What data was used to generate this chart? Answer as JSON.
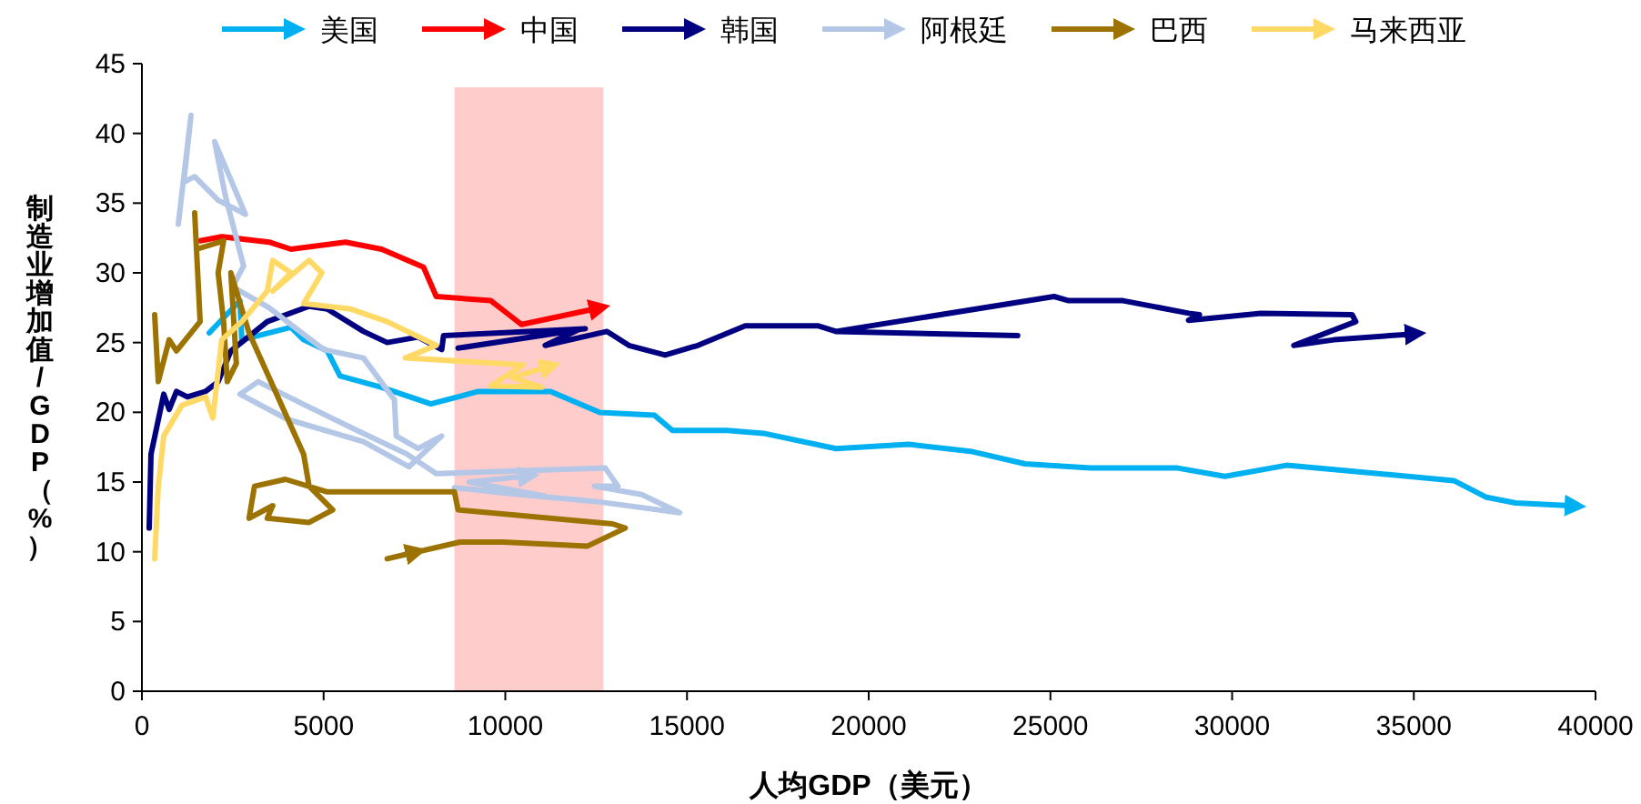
{
  "chart_data": {
    "type": "line",
    "xlabel": "人均GDP（美元）",
    "ylabel": "制造业增加值/GDP（%）",
    "xlim": [
      0,
      40000
    ],
    "ylim": [
      0,
      45
    ],
    "xticks": [
      0,
      5000,
      10000,
      15000,
      20000,
      25000,
      30000,
      35000,
      40000
    ],
    "yticks": [
      0,
      5,
      10,
      15,
      20,
      25,
      30,
      35,
      40,
      45
    ],
    "grid": false,
    "legend": "top",
    "line_style": "solid",
    "bands": [
      {
        "axis": "x",
        "from": 8600,
        "to": 12700,
        "color": "#ffcccc"
      }
    ],
    "series": [
      {
        "name": "美国",
        "color": "#00b0f0",
        "x": [
          1850,
          2700,
          2750,
          4100,
          4450,
          5100,
          5450,
          6600,
          7950,
          9250,
          11250,
          12600,
          14100,
          14600,
          16100,
          17100,
          19100,
          21100,
          22800,
          24300,
          26100,
          28500,
          29800,
          31500,
          32800,
          36100,
          37000,
          37800,
          39300
        ],
        "values": [
          25.7,
          28,
          25.2,
          26.1,
          25.2,
          24.4,
          22.6,
          21.8,
          20.6,
          21.5,
          21.5,
          20,
          19.8,
          18.7,
          18.7,
          18.5,
          17.4,
          17.7,
          17.2,
          16.3,
          16,
          16,
          15.4,
          16.2,
          15.9,
          15.1,
          13.9,
          13.5,
          13.3
        ]
      },
      {
        "name": "中国",
        "color": "#ff0000",
        "x": [
          1600,
          2200,
          3500,
          4100,
          5600,
          6600,
          7750,
          8100,
          9600,
          10100,
          10450,
          12450
        ],
        "values": [
          32.3,
          32.6,
          32.2,
          31.7,
          32.2,
          31.7,
          30.4,
          28.3,
          28,
          27,
          26.3,
          27.4
        ]
      },
      {
        "name": "韩国",
        "color": "#000080",
        "x": [
          200,
          250,
          600,
          750,
          950,
          1250,
          1750,
          2100,
          2450,
          3450,
          4600,
          5100,
          6100,
          6750,
          7600,
          8250,
          8300,
          12200,
          8700,
          12000,
          11100,
          12800,
          13400,
          14400,
          15300,
          16600,
          18600,
          19100,
          24100,
          19100,
          25100,
          25500,
          27000,
          28800,
          29100,
          28800,
          30800,
          33300,
          33400,
          31700,
          32800,
          34900
        ],
        "values": [
          11.7,
          17,
          21.3,
          20.2,
          21.5,
          21.1,
          21.5,
          22.2,
          24.4,
          26.5,
          27.6,
          27.4,
          25.8,
          25,
          25.4,
          24.5,
          25.5,
          26,
          24.6,
          25.9,
          24.8,
          25.8,
          24.8,
          24.1,
          24.8,
          26.2,
          26.2,
          25.8,
          25.5,
          25.8,
          28.3,
          28,
          28,
          27.1,
          27,
          26.6,
          27.1,
          27,
          26.5,
          24.8,
          25.2,
          25.6
        ]
      },
      {
        "name": "阿根廷",
        "color": "#b4c7e7",
        "x": [
          1000,
          1350,
          1150,
          1450,
          2100,
          2850,
          2000,
          2300,
          2800,
          2500,
          3500,
          5000,
          6100,
          6950,
          7000,
          7600,
          8250,
          7350,
          6100,
          4000,
          2700,
          3200,
          4500,
          6000,
          7300,
          8100,
          12750,
          13100,
          12450,
          13750,
          14800,
          12500,
          10000,
          8600,
          11100,
          9000,
          10500
        ],
        "values": [
          33.5,
          41.3,
          36.5,
          36.9,
          35.2,
          34.2,
          39.4,
          35.5,
          30.5,
          29,
          27.5,
          24.5,
          23.9,
          20.9,
          18.3,
          17.4,
          18.3,
          16.1,
          17.9,
          19.5,
          21.3,
          22.2,
          20.5,
          18.6,
          17,
          15.6,
          16,
          14.7,
          14.7,
          14.1,
          12.8,
          13.6,
          14.2,
          14.6,
          14,
          15,
          15.4
        ]
      },
      {
        "name": "巴西",
        "color": "#9c7300",
        "x": [
          350,
          450,
          750,
          950,
          1600,
          1450,
          1500,
          2250,
          2100,
          2250,
          2350,
          2600,
          2450,
          2950,
          4450,
          4600,
          5250,
          4600,
          3450,
          3600,
          2950,
          3100,
          3950,
          5100,
          8600,
          8700,
          12950,
          13300,
          12250,
          9950,
          8750,
          6750,
          7400
        ],
        "values": [
          27,
          22.2,
          25.2,
          24.4,
          26.5,
          34.3,
          31.7,
          32.3,
          30,
          26.5,
          22.2,
          23.5,
          30,
          25.7,
          17,
          14.7,
          13,
          12.1,
          12.4,
          13.3,
          12.4,
          14.7,
          15.2,
          14.3,
          14.3,
          13,
          12,
          11.7,
          10.4,
          10.7,
          10.7,
          9.5,
          9.9
        ]
      },
      {
        "name": "马来西亚",
        "color": "#ffd966",
        "x": [
          350,
          450,
          600,
          1100,
          1750,
          1950,
          2200,
          2750,
          3450,
          3600,
          4100,
          3600,
          4600,
          4950,
          4450,
          5750,
          6750,
          8100,
          7250,
          10500,
          9600,
          11000,
          10200,
          11100
        ],
        "values": [
          9.5,
          14.7,
          18.3,
          20.5,
          21.1,
          19.6,
          25.2,
          26.5,
          28.7,
          30.9,
          30,
          28.7,
          30.9,
          30,
          27.8,
          27.4,
          26.5,
          24.8,
          23.9,
          23.4,
          21.9,
          21.8,
          22.5,
          23.2
        ]
      }
    ]
  }
}
